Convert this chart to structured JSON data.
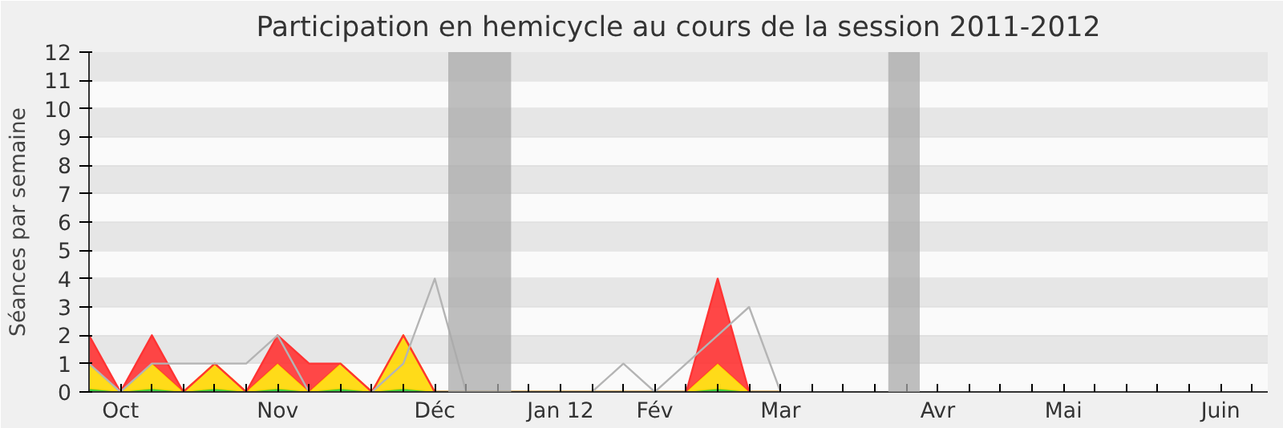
{
  "chart_data": {
    "type": "area",
    "title": "Participation en hemicycle au cours de la session 2011-2012",
    "ylabel": "Séances par semaine",
    "stacked": true,
    "x": [
      "2011-09-29",
      "2011-10-06",
      "2011-10-13",
      "2011-10-20",
      "2011-10-27",
      "2011-11-03",
      "2011-11-10",
      "2011-11-17",
      "2011-11-24",
      "2011-12-01",
      "2011-12-08",
      "2011-12-15",
      "2011-12-22",
      "2011-12-29",
      "2012-01-05",
      "2012-01-12",
      "2012-01-19",
      "2012-01-26",
      "2012-02-02",
      "2012-02-09",
      "2012-02-16",
      "2012-02-23",
      "2012-03-01"
    ],
    "series": [
      {
        "color": "#33cc33",
        "values": [
          0.1,
          0,
          0.1,
          0,
          0.1,
          0,
          0.1,
          0,
          0.1,
          0,
          0.1,
          0,
          0,
          0,
          0,
          0,
          0,
          0,
          0,
          0,
          0.1,
          0,
          0
        ]
      },
      {
        "color": "#ffd700",
        "values": [
          0.9,
          0,
          0.9,
          0,
          0.9,
          0,
          0.9,
          0,
          0.9,
          0,
          1.9,
          0,
          0,
          0,
          0,
          0,
          0,
          0,
          0,
          0,
          0.9,
          0,
          0
        ]
      },
      {
        "color": "#ff3333",
        "values": [
          1,
          0,
          1,
          0,
          0,
          0,
          1,
          1,
          0,
          0,
          0,
          0,
          0,
          0,
          0,
          0,
          0,
          0,
          0,
          0,
          3,
          0,
          0
        ]
      },
      {
        "type": "line",
        "color": "#b4b4b4",
        "values": [
          1,
          0,
          1,
          1,
          1,
          1,
          2,
          0,
          null,
          0,
          1,
          4,
          0,
          null,
          null,
          null,
          0,
          1,
          0,
          1,
          2,
          3,
          0
        ]
      }
    ],
    "xlim": [
      "2011-09-29",
      "2012-06-17T12:00"
    ],
    "ylim": [
      0,
      12
    ],
    "yticks": [
      0,
      1,
      2,
      3,
      4,
      5,
      6,
      7,
      8,
      9,
      10,
      11,
      12
    ],
    "xticks": [
      {
        "value": "2011-09-29",
        "label": null
      },
      {
        "value": "2011-10-06",
        "label": "Oct"
      },
      {
        "value": "2011-10-13",
        "label": null
      },
      {
        "value": "2011-10-20",
        "label": null
      },
      {
        "value": "2011-10-27",
        "label": null
      },
      {
        "value": "2011-11-03",
        "label": null
      },
      {
        "value": "2011-11-10",
        "label": "Nov"
      },
      {
        "value": "2011-11-17",
        "label": null
      },
      {
        "value": "2011-11-24",
        "label": null
      },
      {
        "value": "2011-12-01",
        "label": null
      },
      {
        "value": "2011-12-08",
        "label": null
      },
      {
        "value": "2011-12-15",
        "label": "Déc"
      },
      {
        "value": "2011-12-22",
        "label": null
      },
      {
        "value": "2011-12-29",
        "label": null
      },
      {
        "value": "2012-01-05",
        "label": null
      },
      {
        "value": "2012-01-12",
        "label": "Jan 12"
      },
      {
        "value": "2012-01-19",
        "label": null
      },
      {
        "value": "2012-01-26",
        "label": null
      },
      {
        "value": "2012-02-02",
        "label": "Fév"
      },
      {
        "value": "2012-02-09",
        "label": null
      },
      {
        "value": "2012-02-16",
        "label": null
      },
      {
        "value": "2012-02-23",
        "label": null
      },
      {
        "value": "2012-03-01",
        "label": "Mar"
      },
      {
        "value": "2012-03-08",
        "label": null
      },
      {
        "value": "2012-03-15",
        "label": null
      },
      {
        "value": "2012-03-22",
        "label": null
      },
      {
        "value": "2012-03-29",
        "label": null
      },
      {
        "value": "2012-04-05",
        "label": "Avr"
      },
      {
        "value": "2012-04-12",
        "label": null
      },
      {
        "value": "2012-04-19",
        "label": null
      },
      {
        "value": "2012-04-26",
        "label": null
      },
      {
        "value": "2012-05-03",
        "label": "Mai"
      },
      {
        "value": "2012-05-10",
        "label": null
      },
      {
        "value": "2012-05-17",
        "label": null
      },
      {
        "value": "2012-05-24",
        "label": null
      },
      {
        "value": "2012-05-31",
        "label": null
      },
      {
        "value": "2012-06-07",
        "label": "Juin"
      },
      {
        "value": "2012-06-14",
        "label": null
      }
    ],
    "bands": [
      {
        "axis": "x",
        "from": "2011-12-18",
        "to": "2012-01-01",
        "color": "#aaaaaa"
      },
      {
        "axis": "x",
        "from": "2012-03-25",
        "to": "2012-04-01",
        "color": "#aaaaaa"
      }
    ],
    "grid": "y"
  }
}
